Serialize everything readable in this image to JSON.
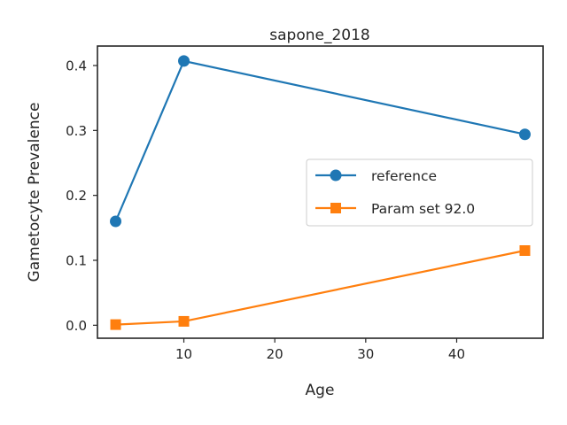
{
  "chart_data": {
    "type": "line",
    "title": "sapone_2018",
    "xlabel": "Age",
    "ylabel": "Gametocyte Prevalence",
    "xlim": [
      0.5,
      49.5
    ],
    "ylim": [
      -0.02,
      0.43
    ],
    "xticks": [
      10,
      20,
      30,
      40
    ],
    "yticks": [
      0.0,
      0.1,
      0.2,
      0.3,
      0.4
    ],
    "xtick_labels": [
      "10",
      "20",
      "30",
      "40"
    ],
    "ytick_labels": [
      "0.0",
      "0.1",
      "0.2",
      "0.3",
      "0.4"
    ],
    "grid": false,
    "legend_position": "center-right",
    "series": [
      {
        "name": "reference",
        "marker": "circle",
        "color": "#1f77b4",
        "x": [
          2.5,
          10,
          47.5
        ],
        "y": [
          0.16,
          0.407,
          0.294
        ]
      },
      {
        "name": "Param set 92.0",
        "marker": "square",
        "color": "#ff7f0e",
        "x": [
          2.5,
          10,
          47.5
        ],
        "y": [
          0.001,
          0.006,
          0.115
        ]
      }
    ]
  }
}
